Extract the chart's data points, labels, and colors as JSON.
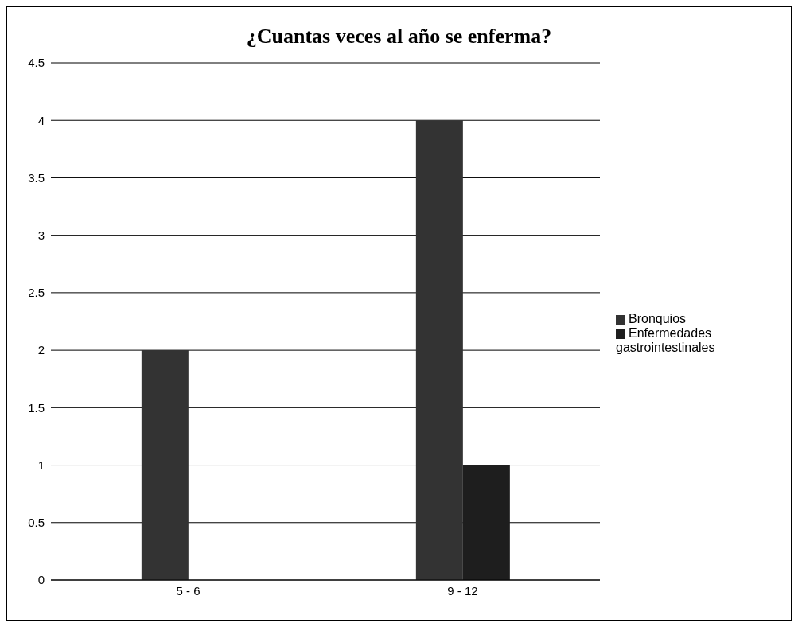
{
  "chart_data": {
    "type": "bar",
    "title": "¿Cuantas veces al año se enferma?",
    "categories": [
      "5 - 6",
      "9 - 12"
    ],
    "series": [
      {
        "name": "Bronquios",
        "color": "#333333",
        "values": [
          2,
          4
        ]
      },
      {
        "name": "Enfermedades gastrointestinales",
        "color": "#1e1e1e",
        "values": [
          null,
          1
        ]
      }
    ],
    "ylim": [
      0,
      4.5
    ],
    "yticks": [
      0,
      0.5,
      1,
      1.5,
      2,
      2.5,
      3,
      3.5,
      4,
      4.5
    ],
    "grid": "y",
    "legend": "right"
  }
}
